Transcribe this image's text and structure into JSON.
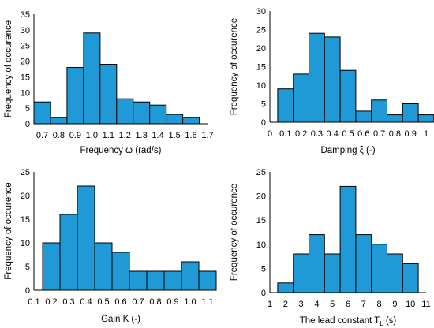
{
  "colors": {
    "bar_fill": "#1F9AD6",
    "bar_stroke": "#000000",
    "axis": "#000000"
  },
  "chart_data": [
    {
      "type": "bar",
      "ylabel": "Frequency of occurence",
      "xlabel": "Frequency ω (rad/s)",
      "ylim": [
        0,
        35
      ],
      "yticks": [
        0,
        5,
        10,
        15,
        20,
        25,
        30,
        35
      ],
      "xlim": [
        0.65,
        1.7
      ],
      "xticks": [
        "0.7",
        "0.8",
        "0.9",
        "1.0",
        "1.1",
        "1.2",
        "1.3",
        "1.4",
        "1.5",
        "1.6",
        "1.7"
      ],
      "bins": [
        [
          0.65,
          0.75
        ],
        [
          0.75,
          0.85
        ],
        [
          0.85,
          0.95
        ],
        [
          0.95,
          1.05
        ],
        [
          1.05,
          1.15
        ],
        [
          1.15,
          1.25
        ],
        [
          1.25,
          1.35
        ],
        [
          1.35,
          1.45
        ],
        [
          1.45,
          1.55
        ],
        [
          1.55,
          1.65
        ]
      ],
      "values": [
        7,
        2,
        18,
        29,
        19,
        8,
        7,
        6,
        3,
        2
      ],
      "grid": false
    },
    {
      "type": "bar",
      "ylabel": "Frequency of occurence",
      "xlabel": "Damping ξ (-)",
      "ylim": [
        0,
        30
      ],
      "yticks": [
        0,
        5,
        10,
        15,
        20,
        25,
        30
      ],
      "xlim": [
        0,
        1.0
      ],
      "xticks": [
        "0",
        "0.1",
        "0.2",
        "0.3",
        "0.4",
        "0.5",
        "0.6",
        "0.7",
        "0.8",
        "0.9",
        "1"
      ],
      "bins": [
        [
          0.05,
          0.15
        ],
        [
          0.15,
          0.25
        ],
        [
          0.25,
          0.35
        ],
        [
          0.35,
          0.45
        ],
        [
          0.45,
          0.55
        ],
        [
          0.55,
          0.65
        ],
        [
          0.65,
          0.75
        ],
        [
          0.75,
          0.85
        ],
        [
          0.85,
          0.95
        ],
        [
          0.95,
          1.05
        ]
      ],
      "values": [
        9,
        13,
        24,
        23,
        14,
        3,
        6,
        2,
        5,
        2
      ],
      "grid": false
    },
    {
      "type": "bar",
      "ylabel": "Frequency of occurence",
      "xlabel": "Gain K (-)",
      "ylim": [
        0,
        25
      ],
      "yticks": [
        0,
        5,
        10,
        15,
        20,
        25
      ],
      "xlim": [
        0.1,
        1.1
      ],
      "xticks": [
        "0.1",
        "0.2",
        "0.3",
        "0.4",
        "0.5",
        "0.6",
        "0.7",
        "0.8",
        "0.9",
        "1.0",
        "1.1"
      ],
      "bins": [
        [
          0.15,
          0.25
        ],
        [
          0.25,
          0.35
        ],
        [
          0.35,
          0.45
        ],
        [
          0.45,
          0.55
        ],
        [
          0.55,
          0.65
        ],
        [
          0.65,
          0.75
        ],
        [
          0.75,
          0.85
        ],
        [
          0.85,
          0.95
        ],
        [
          0.95,
          1.05
        ],
        [
          1.05,
          1.15
        ]
      ],
      "values": [
        10,
        16,
        22,
        10,
        8,
        4,
        4,
        4,
        6,
        4
      ],
      "grid": false
    },
    {
      "type": "bar",
      "ylabel": "Frequency of occurence",
      "xlabel": "The lead constant T",
      "xlabel_sub": "L",
      "xlabel_unit": " (s)",
      "ylim": [
        0,
        25
      ],
      "yticks": [
        0,
        5,
        10,
        15,
        20,
        25
      ],
      "xlim": [
        1,
        11
      ],
      "xticks": [
        "1",
        "2",
        "3",
        "4",
        "5",
        "6",
        "7",
        "8",
        "9",
        "10",
        "11"
      ],
      "bins": [
        [
          1.5,
          2.5
        ],
        [
          2.5,
          3.5
        ],
        [
          3.5,
          4.5
        ],
        [
          4.5,
          5.5
        ],
        [
          5.5,
          6.5
        ],
        [
          6.5,
          7.5
        ],
        [
          7.5,
          8.5
        ],
        [
          8.5,
          9.5
        ],
        [
          9.5,
          10.5
        ]
      ],
      "values": [
        2,
        8,
        12,
        8,
        22,
        12,
        10,
        8,
        6
      ],
      "grid": false
    }
  ]
}
